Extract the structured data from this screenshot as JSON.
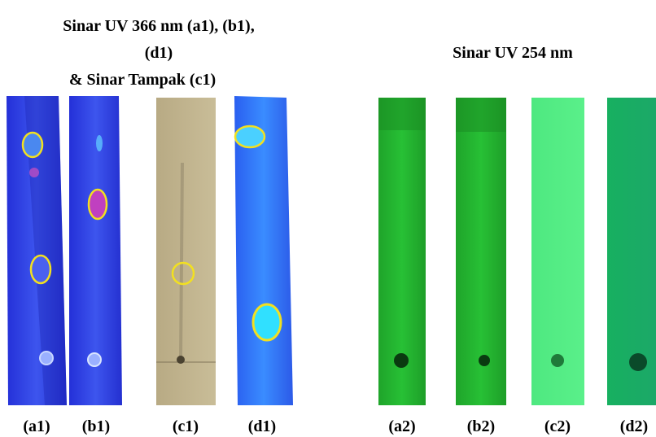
{
  "left_title": {
    "lines": [
      "Sinar UV 366 nm (a1), (b1),",
      "(d1)",
      "& Sinar Tampak (c1)"
    ]
  },
  "right_title": "Sinar UV 254 nm",
  "plate_labels": [
    "(a1)",
    "(b1)",
    "(c1)",
    "(d1)",
    "(a2)",
    "(b2)",
    "(c2)",
    "(d2)"
  ]
}
